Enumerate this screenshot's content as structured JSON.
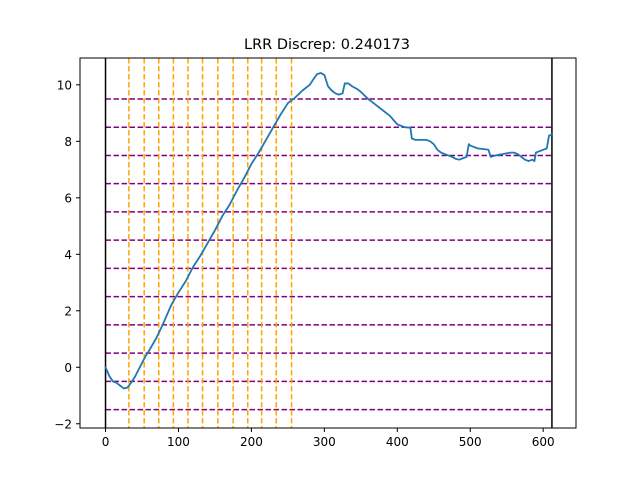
{
  "chart_data": {
    "type": "line",
    "title": "LRR Discrep: 0.240173",
    "xlabel": "",
    "ylabel": "",
    "xlim": [
      -35,
      645
    ],
    "ylim": [
      -2.15,
      10.95
    ],
    "x_ticks": [
      0,
      100,
      200,
      300,
      400,
      500,
      600
    ],
    "y_ticks": [
      -2,
      0,
      2,
      4,
      6,
      8,
      10
    ],
    "x_tick_labels": [
      "0",
      "100",
      "200",
      "300",
      "400",
      "500",
      "600"
    ],
    "y_tick_labels": [
      "−2",
      "0",
      "2",
      "4",
      "6",
      "8",
      "10"
    ],
    "grid": false,
    "legend": "none",
    "colors": {
      "series": "#1f77b4",
      "vertical_lines": "#ffa500",
      "horizontal_lines": "#800080",
      "boundary_lines": "#000000",
      "axes": "#000000"
    },
    "boundary_lines_x": [
      0,
      612
    ],
    "vertical_dashed_lines_x": [
      32,
      53,
      73,
      93,
      113,
      133,
      154,
      175,
      195,
      214,
      234,
      255
    ],
    "horizontal_dashed_lines_y": [
      9.5,
      8.5,
      7.5,
      6.5,
      5.5,
      4.5,
      3.5,
      2.5,
      1.5,
      0.5,
      -0.5,
      -1.5
    ],
    "series": [
      {
        "x": [
          0,
          5,
          10,
          15,
          20,
          25,
          30,
          35,
          40,
          45,
          50,
          55,
          60,
          70,
          80,
          90,
          100,
          110,
          120,
          130,
          140,
          150,
          160,
          170,
          180,
          190,
          200,
          210,
          220,
          230,
          240,
          250,
          260,
          270,
          280,
          285,
          290,
          295,
          300,
          305,
          310,
          315,
          320,
          325,
          328,
          330,
          333,
          338,
          345,
          350,
          360,
          370,
          380,
          390,
          400,
          410,
          418,
          420,
          425,
          435,
          440,
          445,
          450,
          455,
          460,
          465,
          470,
          475,
          480,
          485,
          490,
          495,
          498,
          500,
          505,
          510,
          520,
          525,
          528,
          535,
          545,
          555,
          560,
          565,
          570,
          575,
          580,
          585,
          588,
          590,
          595,
          600,
          605,
          608,
          612
        ],
        "y": [
          0.0,
          -0.3,
          -0.5,
          -0.55,
          -0.65,
          -0.75,
          -0.72,
          -0.55,
          -0.35,
          -0.1,
          0.15,
          0.4,
          0.6,
          1.05,
          1.6,
          2.2,
          2.65,
          3.05,
          3.55,
          3.95,
          4.4,
          4.85,
          5.35,
          5.75,
          6.25,
          6.7,
          7.2,
          7.6,
          8.05,
          8.5,
          8.95,
          9.35,
          9.55,
          9.8,
          10.0,
          10.2,
          10.38,
          10.42,
          10.35,
          9.95,
          9.8,
          9.7,
          9.65,
          9.7,
          10.05,
          10.05,
          10.05,
          9.95,
          9.85,
          9.75,
          9.5,
          9.3,
          9.1,
          8.9,
          8.6,
          8.5,
          8.48,
          8.1,
          8.05,
          8.05,
          8.05,
          8.0,
          7.9,
          7.7,
          7.6,
          7.55,
          7.5,
          7.45,
          7.38,
          7.35,
          7.4,
          7.45,
          7.9,
          7.85,
          7.8,
          7.75,
          7.72,
          7.7,
          7.45,
          7.5,
          7.55,
          7.6,
          7.6,
          7.55,
          7.45,
          7.35,
          7.3,
          7.35,
          7.3,
          7.6,
          7.65,
          7.7,
          7.75,
          8.2,
          8.25
        ]
      }
    ]
  }
}
